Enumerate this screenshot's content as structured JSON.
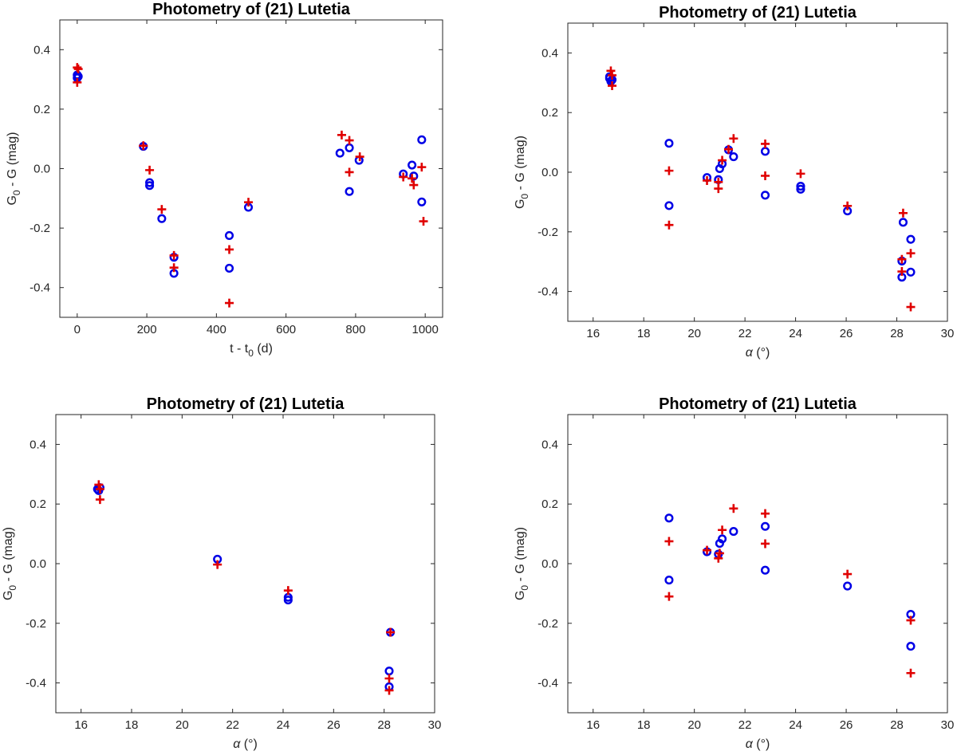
{
  "colors": {
    "circle_series": "#0000E6",
    "cross_series": "#E00000",
    "axis": "#262626"
  },
  "chart_data": [
    {
      "type": "scatter",
      "title": "Photometry of (21) Lutetia",
      "xlabel": {
        "base": "t - t",
        "sub": "0",
        "rest": " (d)"
      },
      "ylabel": {
        "base": "G",
        "sub": "0",
        "rest": " - G (mag)"
      },
      "xlim": [
        -50,
        1050
      ],
      "ylim": [
        -0.5,
        0.5
      ],
      "xticks": [
        0,
        200,
        400,
        600,
        800,
        1000
      ],
      "xtick_labels": [
        "0",
        "200",
        "400",
        "600",
        "800",
        "1000"
      ],
      "yticks": [
        -0.4,
        -0.2,
        0.0,
        0.2,
        0.4
      ],
      "ytick_labels": [
        "-0.4",
        "-0.2",
        "0.0",
        "0.2",
        "0.4"
      ],
      "series": [
        {
          "name": "circles",
          "marker": "o",
          "x": [
            0,
            0,
            3,
            190,
            208,
            208,
            243,
            278,
            278,
            437,
            437,
            492,
            755,
            782,
            782,
            810,
            937,
            962,
            967,
            990,
            990
          ],
          "y": [
            0.315,
            0.305,
            0.31,
            0.075,
            -0.047,
            -0.057,
            -0.168,
            -0.298,
            -0.352,
            -0.225,
            -0.335,
            -0.13,
            0.052,
            0.07,
            -0.077,
            0.028,
            -0.018,
            0.012,
            -0.025,
            0.097,
            -0.112
          ]
        },
        {
          "name": "crosses",
          "marker": "+",
          "x": [
            0,
            0,
            3,
            190,
            208,
            243,
            278,
            278,
            437,
            437,
            492,
            760,
            782,
            782,
            812,
            937,
            962,
            967,
            990,
            995
          ],
          "y": [
            0.34,
            0.29,
            0.335,
            0.077,
            -0.005,
            -0.137,
            -0.292,
            -0.333,
            -0.272,
            -0.452,
            -0.113,
            0.113,
            0.095,
            -0.012,
            0.04,
            -0.028,
            -0.033,
            -0.055,
            0.005,
            -0.177
          ]
        }
      ]
    },
    {
      "type": "scatter",
      "title": "Photometry of (21) Lutetia",
      "xlabel": {
        "base": "α",
        "sub": "",
        "rest": " (°)"
      },
      "ylabel": {
        "base": "G",
        "sub": "0",
        "rest": " - G (mag)"
      },
      "xlim": [
        15,
        30
      ],
      "ylim": [
        -0.5,
        0.5
      ],
      "xticks": [
        16,
        18,
        20,
        22,
        24,
        26,
        28,
        30
      ],
      "xtick_labels": [
        "16",
        "18",
        "20",
        "22",
        "24",
        "26",
        "28",
        "30"
      ],
      "yticks": [
        -0.4,
        -0.2,
        0.0,
        0.2,
        0.4
      ],
      "ytick_labels": [
        "-0.4",
        "-0.2",
        "0.0",
        "0.2",
        "0.4"
      ],
      "series": [
        {
          "name": "circles",
          "marker": "o",
          "x": [
            16.65,
            16.7,
            16.75,
            16.65,
            19.0,
            19.0,
            20.5,
            20.95,
            21.0,
            21.1,
            21.35,
            21.55,
            22.8,
            22.8,
            24.2,
            24.2,
            26.05,
            28.2,
            28.2,
            28.25,
            28.55,
            28.55
          ],
          "y": [
            0.315,
            0.305,
            0.31,
            0.32,
            0.097,
            -0.112,
            -0.018,
            -0.025,
            0.012,
            0.028,
            0.075,
            0.052,
            0.07,
            -0.077,
            -0.047,
            -0.057,
            -0.13,
            -0.298,
            -0.352,
            -0.168,
            -0.225,
            -0.335
          ]
        },
        {
          "name": "crosses",
          "marker": "+",
          "x": [
            16.7,
            16.75,
            16.75,
            19.0,
            19.0,
            20.5,
            20.95,
            20.95,
            21.1,
            21.35,
            21.55,
            22.8,
            22.8,
            24.2,
            26.05,
            28.2,
            28.2,
            28.25,
            28.55,
            28.55
          ],
          "y": [
            0.34,
            0.29,
            0.325,
            0.005,
            -0.177,
            -0.028,
            -0.033,
            -0.055,
            0.04,
            0.077,
            0.113,
            0.095,
            -0.012,
            -0.005,
            -0.113,
            -0.292,
            -0.333,
            -0.137,
            -0.272,
            -0.452
          ]
        }
      ]
    },
    {
      "type": "scatter",
      "title": "Photometry of (21) Lutetia",
      "xlabel": {
        "base": "α",
        "sub": "",
        "rest": " (°)"
      },
      "ylabel": {
        "base": "G",
        "sub": "0",
        "rest": " - G (mag)"
      },
      "xlim": [
        15,
        30
      ],
      "ylim": [
        -0.5,
        0.5
      ],
      "xticks": [
        16,
        18,
        20,
        22,
        24,
        26,
        28,
        30
      ],
      "xtick_labels": [
        "16",
        "18",
        "20",
        "22",
        "24",
        "26",
        "28",
        "30"
      ],
      "yticks": [
        -0.4,
        -0.2,
        0.0,
        0.2,
        0.4
      ],
      "ytick_labels": [
        "-0.4",
        "-0.2",
        "0.0",
        "0.2",
        "0.4"
      ],
      "series": [
        {
          "name": "circles",
          "marker": "o",
          "x": [
            16.65,
            16.7,
            16.75,
            21.4,
            24.2,
            24.2,
            28.25,
            28.2,
            28.2
          ],
          "y": [
            0.25,
            0.245,
            0.255,
            0.015,
            -0.113,
            -0.122,
            -0.23,
            -0.36,
            -0.413
          ]
        },
        {
          "name": "crosses",
          "marker": "+",
          "x": [
            16.7,
            16.75,
            16.75,
            21.4,
            24.2,
            28.25,
            28.2,
            28.2
          ],
          "y": [
            0.265,
            0.215,
            0.25,
            -0.003,
            -0.09,
            -0.23,
            -0.385,
            -0.425
          ]
        }
      ]
    },
    {
      "type": "scatter",
      "title": "Photometry of (21) Lutetia",
      "xlabel": {
        "base": "α",
        "sub": "",
        "rest": " (°)"
      },
      "ylabel": {
        "base": "G",
        "sub": "0",
        "rest": " - G (mag)"
      },
      "xlim": [
        15,
        30
      ],
      "ylim": [
        -0.5,
        0.5
      ],
      "xticks": [
        16,
        18,
        20,
        22,
        24,
        26,
        28,
        30
      ],
      "xtick_labels": [
        "16",
        "18",
        "20",
        "22",
        "24",
        "26",
        "28",
        "30"
      ],
      "yticks": [
        -0.4,
        -0.2,
        0.0,
        0.2,
        0.4
      ],
      "ytick_labels": [
        "-0.4",
        "-0.2",
        "0.0",
        "0.2",
        "0.4"
      ],
      "series": [
        {
          "name": "circles",
          "marker": "o",
          "x": [
            19.0,
            19.0,
            20.5,
            20.95,
            21.0,
            21.1,
            21.55,
            22.8,
            22.8,
            26.05,
            28.55,
            28.55
          ],
          "y": [
            0.153,
            -0.055,
            0.04,
            0.032,
            0.068,
            0.083,
            0.108,
            0.125,
            -0.022,
            -0.075,
            -0.17,
            -0.277
          ]
        },
        {
          "name": "crosses",
          "marker": "+",
          "x": [
            19.0,
            19.0,
            20.5,
            20.95,
            21.0,
            21.1,
            21.55,
            22.8,
            22.8,
            26.05,
            28.55,
            28.55
          ],
          "y": [
            0.075,
            -0.11,
            0.045,
            0.018,
            0.035,
            0.113,
            0.185,
            0.168,
            0.067,
            -0.035,
            -0.19,
            -0.367
          ]
        }
      ]
    }
  ]
}
